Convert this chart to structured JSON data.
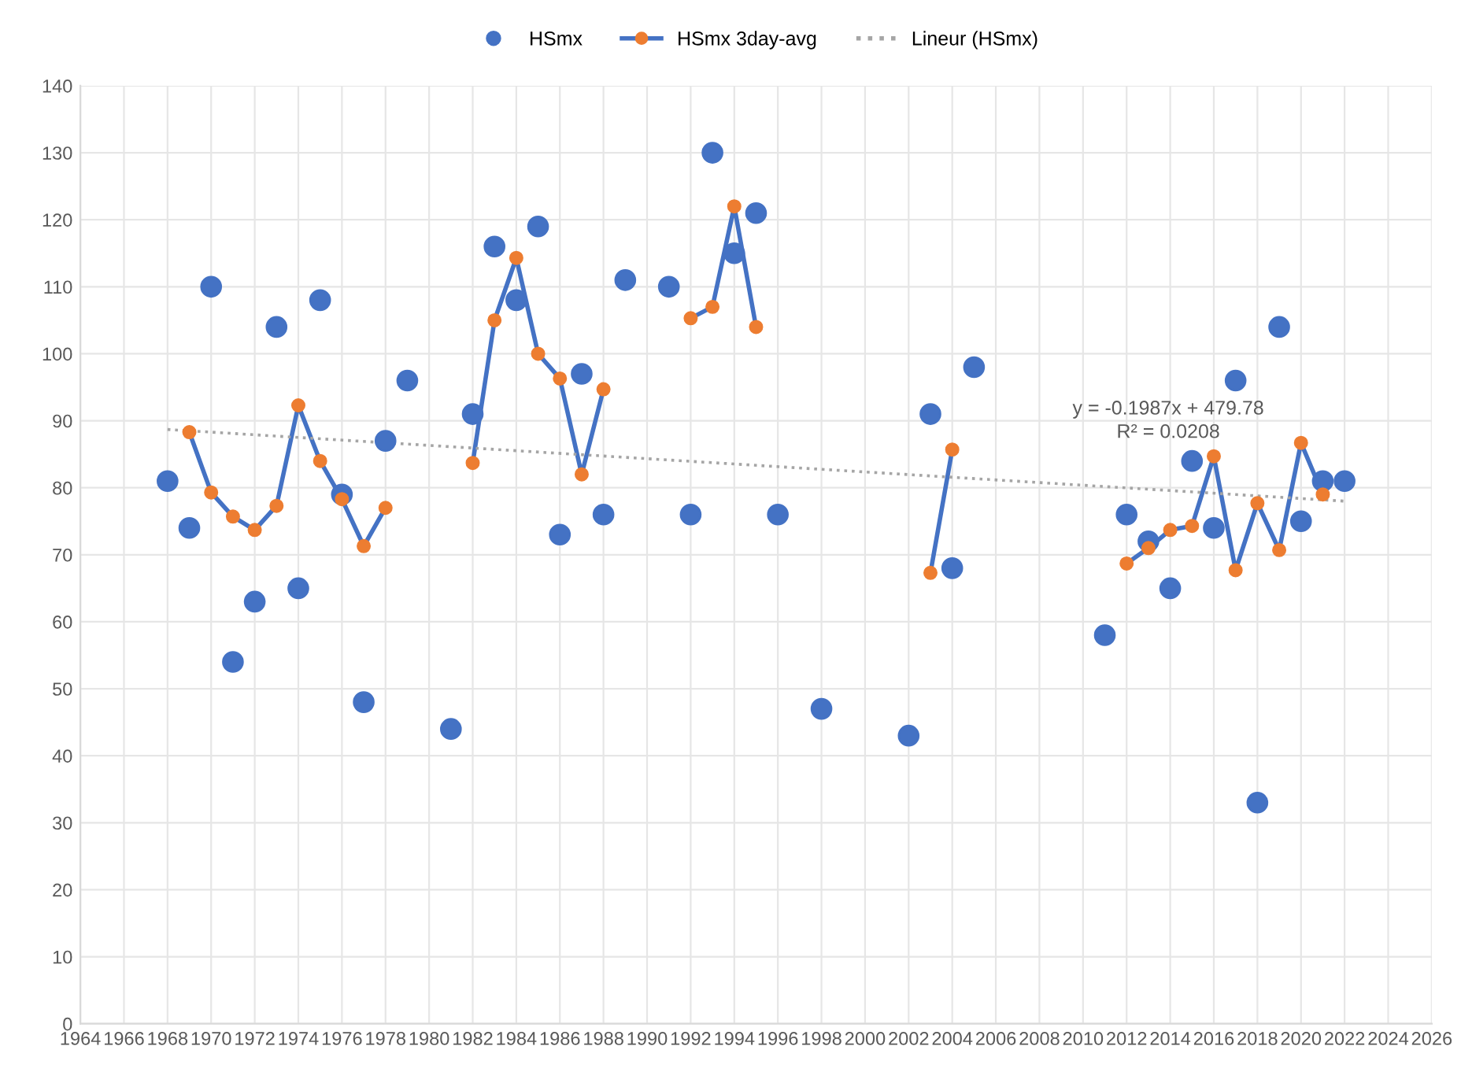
{
  "chart_data": {
    "type": "scatter",
    "xlim": [
      1964,
      2026
    ],
    "xticks": [
      1964,
      1966,
      1968,
      1970,
      1972,
      1974,
      1976,
      1978,
      1980,
      1982,
      1984,
      1986,
      1988,
      1990,
      1992,
      1994,
      1996,
      1998,
      2000,
      2002,
      2004,
      2006,
      2008,
      2010,
      2012,
      2014,
      2016,
      2018,
      2020,
      2022,
      2024,
      2026
    ],
    "ylim": [
      0,
      140
    ],
    "yticks": [
      0,
      10,
      20,
      30,
      40,
      50,
      60,
      70,
      80,
      90,
      100,
      110,
      120,
      130,
      140
    ],
    "grid": true,
    "legend": "top",
    "marker": "circle",
    "annotations": [
      "y = -0.1987x + 479.78",
      "R² = 0.0208"
    ],
    "series": [
      {
        "name": "HSmx",
        "color": "#4472c4",
        "x": [
          1968,
          1969,
          1970,
          1971,
          1972,
          1973,
          1974,
          1975,
          1976,
          1977,
          1978,
          1979,
          1981,
          1982,
          1983,
          1984,
          1985,
          1986,
          1987,
          1988,
          1989,
          1991,
          1992,
          1993,
          1994,
          1995,
          1996,
          1998,
          2002,
          2003,
          2004,
          2005,
          2011,
          2012,
          2013,
          2014,
          2015,
          2016,
          2017,
          2018,
          2019,
          2020,
          2021,
          2022
        ],
        "values": [
          81,
          74,
          110,
          54,
          63,
          104,
          65,
          108,
          79,
          48,
          87,
          96,
          44,
          91,
          116,
          108,
          119,
          73,
          97,
          76,
          111,
          110,
          76,
          130,
          115,
          121,
          76,
          47,
          43,
          91,
          68,
          98,
          58,
          76,
          72,
          65,
          84,
          74,
          96,
          33,
          104,
          75,
          81,
          81
        ]
      },
      {
        "name": "HSmx 3day-avg",
        "type": "line",
        "color": "#4472c4",
        "colors": [
          "#ed7d31",
          "#ed7d31",
          "#ed7d31",
          "#ed7d31",
          "#ed7d31",
          "#ed7d31",
          "#ed7d31",
          "#ed7d31",
          "#ed7d31",
          "#ed7d31",
          null,
          "#ed7d31",
          "#ed7d31",
          "#ed7d31",
          "#ed7d31",
          "#ed7d31",
          "#ed7d31",
          "#ed7d31",
          null,
          "#ed7d31",
          "#ed7d31",
          "#ed7d31",
          "#ed7d31",
          null,
          "#ed7d31",
          "#ed7d31",
          null,
          "#ed7d31",
          "#ed7d31",
          "#ed7d31",
          "#ed7d31",
          "#ed7d31",
          "#ed7d31",
          "#ed7d31",
          "#ed7d31",
          "#ed7d31",
          "#ed7d31"
        ],
        "x": [
          1969,
          1970,
          1971,
          1972,
          1973,
          1974,
          1975,
          1976,
          1977,
          1978,
          1980,
          1982,
          1983,
          1984,
          1985,
          1986,
          1987,
          1988,
          1990,
          1992,
          1993,
          1994,
          1995,
          2000,
          2003,
          2004,
          2008,
          2012,
          2013,
          2014,
          2015,
          2016,
          2017,
          2018,
          2019,
          2020,
          2021
        ],
        "values": [
          88.3,
          79.3,
          75.7,
          73.7,
          77.3,
          92.3,
          84,
          78.3,
          71.3,
          77,
          null,
          83.7,
          105,
          114.3,
          100,
          96.3,
          82,
          94.7,
          null,
          105.3,
          107,
          122,
          104,
          null,
          67.3,
          85.7,
          null,
          68.7,
          71,
          73.7,
          74.3,
          84.7,
          67.7,
          77.7,
          70.7,
          86.7,
          79
        ]
      },
      {
        "name": "Lineur (HSmx)",
        "type": "line",
        "color": "#a5a5a5",
        "line_style": "dotted",
        "marker": "none",
        "x": [
          1968,
          2022
        ],
        "values": [
          88.7,
          78.0
        ]
      }
    ]
  }
}
